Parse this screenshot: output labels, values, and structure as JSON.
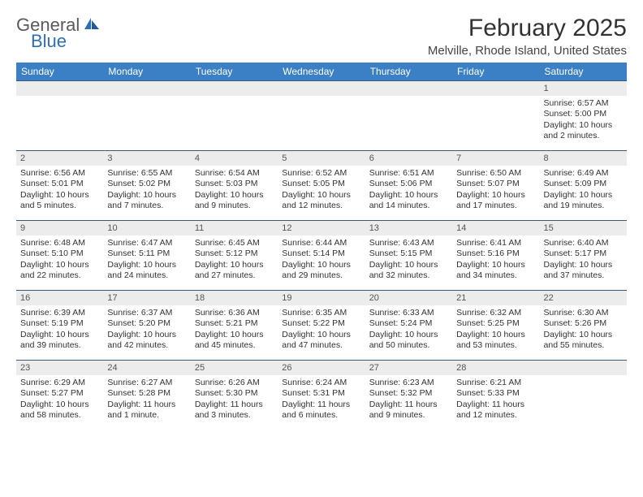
{
  "logo": {
    "text1": "General",
    "text2": "Blue"
  },
  "title": "February 2025",
  "location": "Melville, Rhode Island, United States",
  "colors": {
    "header_bg": "#3b7fc4",
    "header_text": "#ffffff",
    "row_border": "#3b5a7a",
    "daynum_bg": "#ececec",
    "logo_blue": "#2f6fb0",
    "body_text": "#333333"
  },
  "day_names": [
    "Sunday",
    "Monday",
    "Tuesday",
    "Wednesday",
    "Thursday",
    "Friday",
    "Saturday"
  ],
  "weeks": [
    [
      {
        "n": "",
        "empty": true
      },
      {
        "n": "",
        "empty": true
      },
      {
        "n": "",
        "empty": true
      },
      {
        "n": "",
        "empty": true
      },
      {
        "n": "",
        "empty": true
      },
      {
        "n": "",
        "empty": true
      },
      {
        "n": "1",
        "sunrise": "Sunrise: 6:57 AM",
        "sunset": "Sunset: 5:00 PM",
        "day1": "Daylight: 10 hours",
        "day2": "and 2 minutes."
      }
    ],
    [
      {
        "n": "2",
        "sunrise": "Sunrise: 6:56 AM",
        "sunset": "Sunset: 5:01 PM",
        "day1": "Daylight: 10 hours",
        "day2": "and 5 minutes."
      },
      {
        "n": "3",
        "sunrise": "Sunrise: 6:55 AM",
        "sunset": "Sunset: 5:02 PM",
        "day1": "Daylight: 10 hours",
        "day2": "and 7 minutes."
      },
      {
        "n": "4",
        "sunrise": "Sunrise: 6:54 AM",
        "sunset": "Sunset: 5:03 PM",
        "day1": "Daylight: 10 hours",
        "day2": "and 9 minutes."
      },
      {
        "n": "5",
        "sunrise": "Sunrise: 6:52 AM",
        "sunset": "Sunset: 5:05 PM",
        "day1": "Daylight: 10 hours",
        "day2": "and 12 minutes."
      },
      {
        "n": "6",
        "sunrise": "Sunrise: 6:51 AM",
        "sunset": "Sunset: 5:06 PM",
        "day1": "Daylight: 10 hours",
        "day2": "and 14 minutes."
      },
      {
        "n": "7",
        "sunrise": "Sunrise: 6:50 AM",
        "sunset": "Sunset: 5:07 PM",
        "day1": "Daylight: 10 hours",
        "day2": "and 17 minutes."
      },
      {
        "n": "8",
        "sunrise": "Sunrise: 6:49 AM",
        "sunset": "Sunset: 5:09 PM",
        "day1": "Daylight: 10 hours",
        "day2": "and 19 minutes."
      }
    ],
    [
      {
        "n": "9",
        "sunrise": "Sunrise: 6:48 AM",
        "sunset": "Sunset: 5:10 PM",
        "day1": "Daylight: 10 hours",
        "day2": "and 22 minutes."
      },
      {
        "n": "10",
        "sunrise": "Sunrise: 6:47 AM",
        "sunset": "Sunset: 5:11 PM",
        "day1": "Daylight: 10 hours",
        "day2": "and 24 minutes."
      },
      {
        "n": "11",
        "sunrise": "Sunrise: 6:45 AM",
        "sunset": "Sunset: 5:12 PM",
        "day1": "Daylight: 10 hours",
        "day2": "and 27 minutes."
      },
      {
        "n": "12",
        "sunrise": "Sunrise: 6:44 AM",
        "sunset": "Sunset: 5:14 PM",
        "day1": "Daylight: 10 hours",
        "day2": "and 29 minutes."
      },
      {
        "n": "13",
        "sunrise": "Sunrise: 6:43 AM",
        "sunset": "Sunset: 5:15 PM",
        "day1": "Daylight: 10 hours",
        "day2": "and 32 minutes."
      },
      {
        "n": "14",
        "sunrise": "Sunrise: 6:41 AM",
        "sunset": "Sunset: 5:16 PM",
        "day1": "Daylight: 10 hours",
        "day2": "and 34 minutes."
      },
      {
        "n": "15",
        "sunrise": "Sunrise: 6:40 AM",
        "sunset": "Sunset: 5:17 PM",
        "day1": "Daylight: 10 hours",
        "day2": "and 37 minutes."
      }
    ],
    [
      {
        "n": "16",
        "sunrise": "Sunrise: 6:39 AM",
        "sunset": "Sunset: 5:19 PM",
        "day1": "Daylight: 10 hours",
        "day2": "and 39 minutes."
      },
      {
        "n": "17",
        "sunrise": "Sunrise: 6:37 AM",
        "sunset": "Sunset: 5:20 PM",
        "day1": "Daylight: 10 hours",
        "day2": "and 42 minutes."
      },
      {
        "n": "18",
        "sunrise": "Sunrise: 6:36 AM",
        "sunset": "Sunset: 5:21 PM",
        "day1": "Daylight: 10 hours",
        "day2": "and 45 minutes."
      },
      {
        "n": "19",
        "sunrise": "Sunrise: 6:35 AM",
        "sunset": "Sunset: 5:22 PM",
        "day1": "Daylight: 10 hours",
        "day2": "and 47 minutes."
      },
      {
        "n": "20",
        "sunrise": "Sunrise: 6:33 AM",
        "sunset": "Sunset: 5:24 PM",
        "day1": "Daylight: 10 hours",
        "day2": "and 50 minutes."
      },
      {
        "n": "21",
        "sunrise": "Sunrise: 6:32 AM",
        "sunset": "Sunset: 5:25 PM",
        "day1": "Daylight: 10 hours",
        "day2": "and 53 minutes."
      },
      {
        "n": "22",
        "sunrise": "Sunrise: 6:30 AM",
        "sunset": "Sunset: 5:26 PM",
        "day1": "Daylight: 10 hours",
        "day2": "and 55 minutes."
      }
    ],
    [
      {
        "n": "23",
        "sunrise": "Sunrise: 6:29 AM",
        "sunset": "Sunset: 5:27 PM",
        "day1": "Daylight: 10 hours",
        "day2": "and 58 minutes."
      },
      {
        "n": "24",
        "sunrise": "Sunrise: 6:27 AM",
        "sunset": "Sunset: 5:28 PM",
        "day1": "Daylight: 11 hours",
        "day2": "and 1 minute."
      },
      {
        "n": "25",
        "sunrise": "Sunrise: 6:26 AM",
        "sunset": "Sunset: 5:30 PM",
        "day1": "Daylight: 11 hours",
        "day2": "and 3 minutes."
      },
      {
        "n": "26",
        "sunrise": "Sunrise: 6:24 AM",
        "sunset": "Sunset: 5:31 PM",
        "day1": "Daylight: 11 hours",
        "day2": "and 6 minutes."
      },
      {
        "n": "27",
        "sunrise": "Sunrise: 6:23 AM",
        "sunset": "Sunset: 5:32 PM",
        "day1": "Daylight: 11 hours",
        "day2": "and 9 minutes."
      },
      {
        "n": "28",
        "sunrise": "Sunrise: 6:21 AM",
        "sunset": "Sunset: 5:33 PM",
        "day1": "Daylight: 11 hours",
        "day2": "and 12 minutes."
      },
      {
        "n": "",
        "empty": true
      }
    ]
  ]
}
